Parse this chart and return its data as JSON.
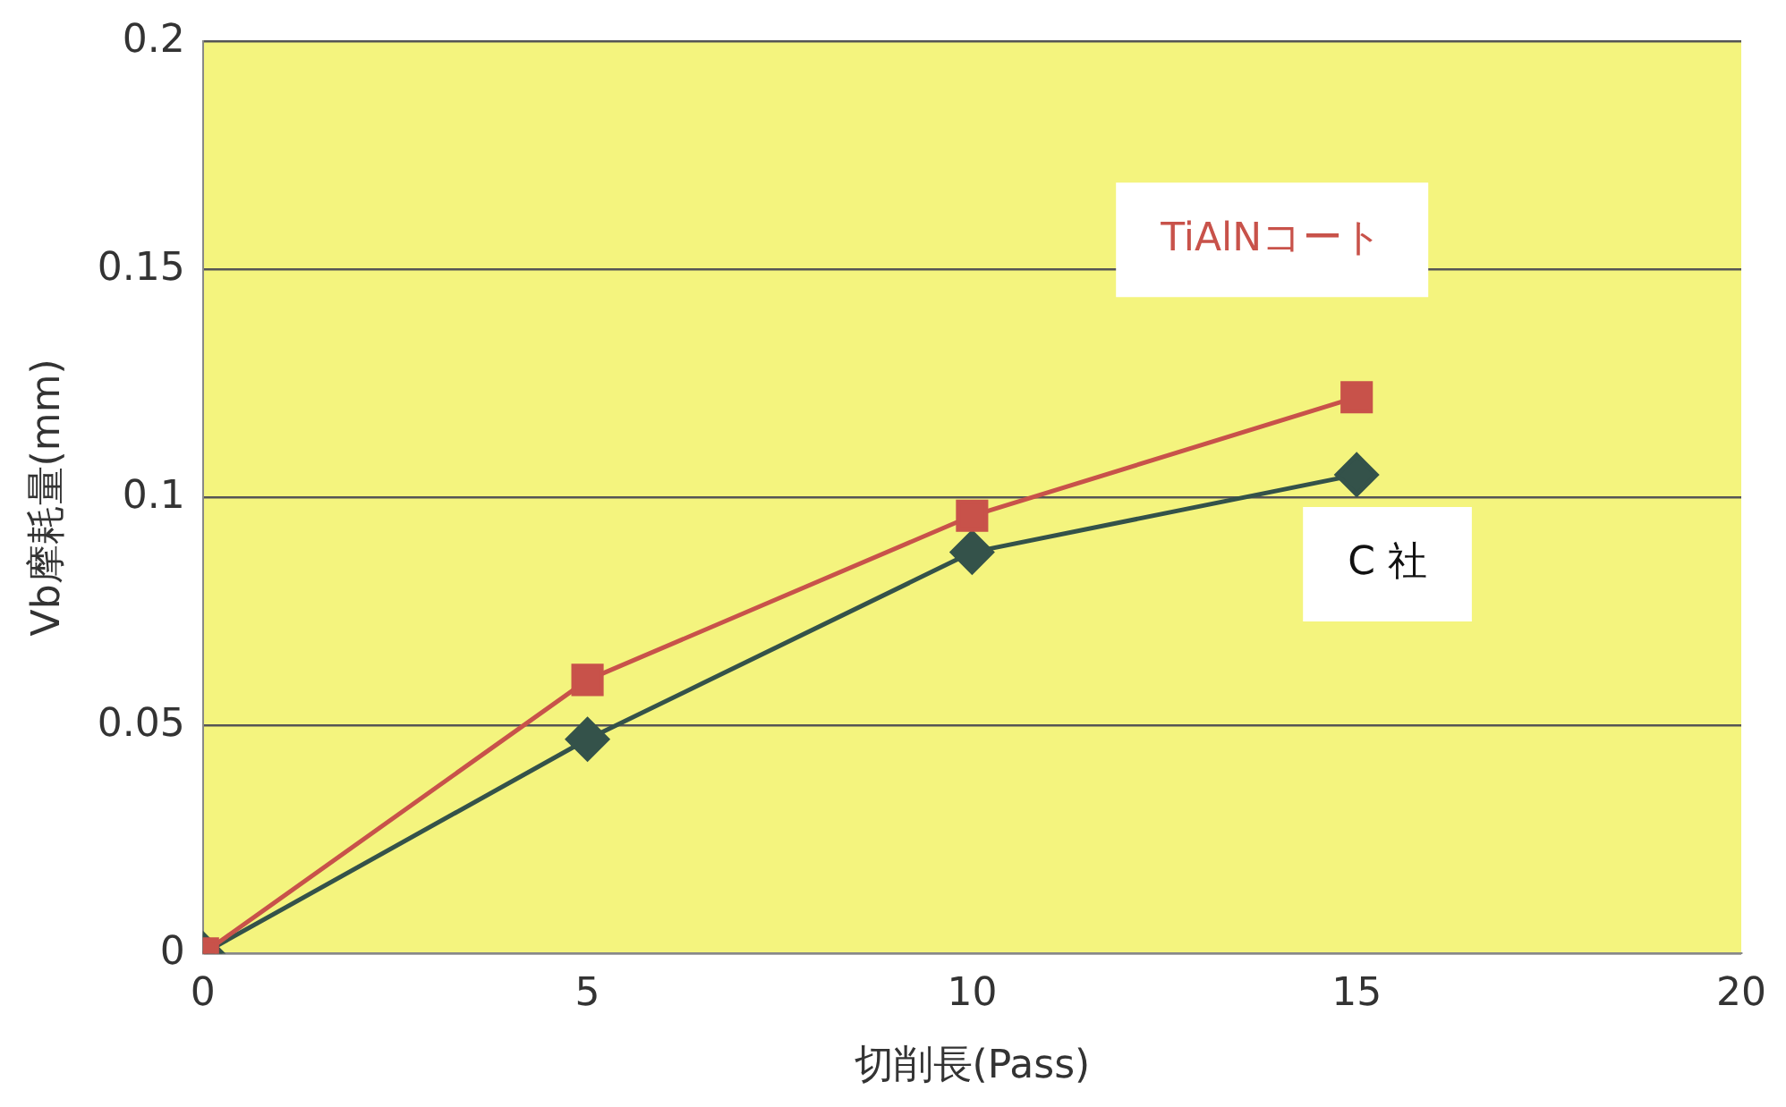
{
  "chart_data": {
    "type": "line",
    "xlabel": "切削長(Pass)",
    "ylabel": "Vb摩耗量(mm)",
    "x": [
      0,
      5,
      10,
      15
    ],
    "series": [
      {
        "name": "TiAlNコート",
        "color": "#c8524a",
        "marker": "square",
        "values": [
          0,
          0.06,
          0.096,
          0.122
        ]
      },
      {
        "name": "C 社",
        "color": "#34524a",
        "marker": "diamond",
        "values": [
          0,
          0.047,
          0.088,
          0.105
        ]
      }
    ],
    "xlim": [
      0,
      20
    ],
    "xticks": [
      0,
      5,
      10,
      15,
      20
    ],
    "ylim": [
      0,
      0.2
    ],
    "yticks": [
      0,
      0.05,
      0.1,
      0.15,
      0.2
    ],
    "grid": "y",
    "legend": false,
    "line_style": "solid"
  }
}
